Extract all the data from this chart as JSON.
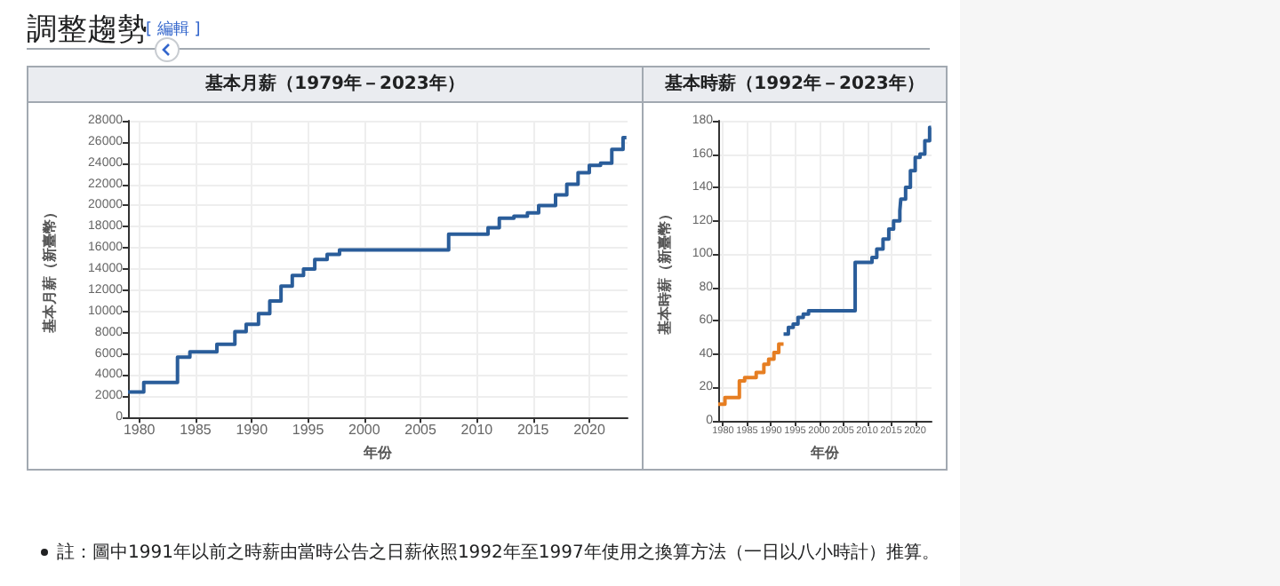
{
  "chart_data": [
    {
      "type": "step",
      "title": "基本月薪（1979年－2023年）",
      "xlabel": "年份",
      "ylabel": "基本月薪（新臺幣）",
      "annotations": [
        "調整趨勢",
        "[ 編輯 ]",
        "註：圖中1991年以前之時薪由當時公告之日薪依照1992年至1997年使用之換算方法（一日以八小時計）推算。"
      ],
      "xlim": [
        1979,
        2023.4
      ],
      "xticks": [
        1980,
        1985,
        1990,
        1995,
        2000,
        2005,
        2010,
        2015,
        2020
      ],
      "ylim": [
        0,
        28000
      ],
      "yticks": [
        0,
        2000,
        4000,
        6000,
        8000,
        10000,
        12000,
        14000,
        16000,
        18000,
        20000,
        22000,
        24000,
        26000,
        28000
      ],
      "grid": true,
      "marker": "none",
      "series": [
        {
          "color": "#2a5d9a",
          "x": [
            1979,
            1980.4,
            1983.4,
            1984.5,
            1986.9,
            1988.5,
            1989.5,
            1990.6,
            1991.6,
            1992.6,
            1993.6,
            1994.6,
            1995.6,
            1996.7,
            1997.8,
            2007.5,
            2011,
            2012,
            2013.3,
            2014.5,
            2015.5,
            2017,
            2018,
            2019,
            2020,
            2021,
            2022,
            2023,
            2023.3
          ],
          "values": [
            2400,
            3300,
            5700,
            6200,
            6900,
            8100,
            8800,
            9800,
            11000,
            12400,
            13400,
            14000,
            14900,
            15400,
            15800,
            17300,
            17900,
            18800,
            19000,
            19300,
            20000,
            21000,
            22000,
            23100,
            23800,
            24000,
            25300,
            26400,
            26400
          ]
        }
      ]
    },
    {
      "type": "step",
      "title": "基本時薪（1992年－2023年）",
      "xlabel": "年份",
      "ylabel": "基本時薪（新臺幣）",
      "xlim": [
        1979,
        2023.4
      ],
      "xticks": [
        1980,
        1985,
        1990,
        1995,
        2000,
        2005,
        2010,
        2015,
        2020
      ],
      "ylim": [
        0,
        180
      ],
      "yticks": [
        0,
        20,
        40,
        60,
        80,
        100,
        120,
        140,
        160,
        180
      ],
      "grid": true,
      "marker": "none",
      "series": [
        {
          "color": "#e67e22",
          "x": [
            1979,
            1980.4,
            1983.4,
            1984.5,
            1986.9,
            1988.5,
            1989.5,
            1990.6,
            1991.6,
            1992.6
          ],
          "values": [
            10,
            14,
            24,
            26,
            29,
            34,
            37,
            41,
            46,
            46
          ]
        },
        {
          "color": "#2a5d9a",
          "x": [
            1992.6,
            1993.6,
            1994.6,
            1995.6,
            1996.7,
            1997.8,
            2007.5,
            2011,
            2012,
            2013.3,
            2014.5,
            2015.5,
            2016.8,
            2017,
            2018,
            2019,
            2020,
            2021,
            2022,
            2023,
            2023.3
          ],
          "values": [
            52,
            56,
            58,
            62,
            64,
            66,
            95,
            98,
            103,
            109,
            115,
            120,
            126,
            133,
            140,
            150,
            158,
            160,
            168,
            176,
            176
          ]
        }
      ]
    }
  ]
}
